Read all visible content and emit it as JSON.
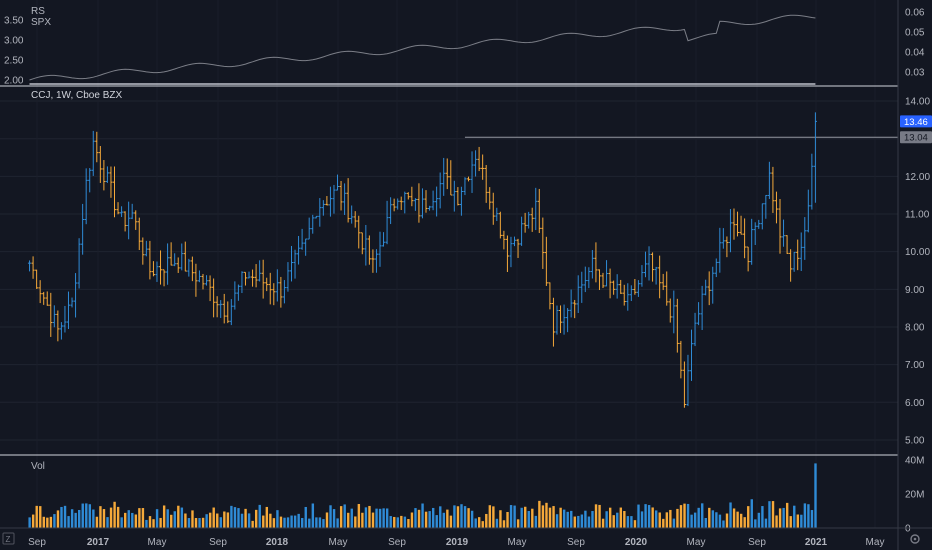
{
  "colors": {
    "background": "#131722",
    "up": "#2f8bd6",
    "down": "#f5a93a",
    "rs_line": "#e0e3eb",
    "spx_line": "#7b7e87",
    "badge_blue": "#2962ff",
    "badge_gray": "#787b86",
    "separator": "#d1d4dc"
  },
  "rs_pane": {
    "labels": [
      "RS",
      "SPX"
    ],
    "left_ticks": [
      "3.50",
      "3.00",
      "2.50",
      "2.00"
    ],
    "right_ticks": [
      "0.06",
      "0.05",
      "0.04",
      "0.03"
    ]
  },
  "price_pane": {
    "title": "CCJ, 1W, Cboe BZX",
    "y_ticks": [
      "14.00",
      "13.00",
      "12.00",
      "11.00",
      "10.00",
      "9.00",
      "8.00",
      "7.00",
      "6.00",
      "5.00"
    ],
    "last_price_label": "13.46",
    "level_label": "13.04"
  },
  "volume_pane": {
    "title": "Vol",
    "y_ticks": [
      "40M",
      "20M",
      "0"
    ]
  },
  "x_axis": {
    "labels": [
      "Sep",
      "2017",
      "May",
      "Sep",
      "2018",
      "May",
      "Sep",
      "2019",
      "May",
      "Sep",
      "2020",
      "May",
      "Sep",
      "2021",
      "May"
    ],
    "bold": [
      "2017",
      "2018",
      "2019",
      "2020",
      "2021"
    ]
  },
  "chart_data": {
    "type": "ohlc",
    "symbol": "CCJ",
    "interval": "1W",
    "exchange": "Cboe BZX",
    "anchors_close": [
      [
        "2016-08-29",
        9.7
      ],
      [
        "2016-10-24",
        7.9
      ],
      [
        "2016-11-21",
        8.6
      ],
      [
        "2016-12-19",
        11.8
      ],
      [
        "2017-01-02",
        12.9
      ],
      [
        "2017-02-27",
        10.8
      ],
      [
        "2017-03-20",
        11.0
      ],
      [
        "2017-04-24",
        9.5
      ],
      [
        "2017-06-19",
        9.8
      ],
      [
        "2017-08-07",
        9.2
      ],
      [
        "2017-09-25",
        8.4
      ],
      [
        "2017-10-30",
        9.4
      ],
      [
        "2018-01-08",
        9.0
      ],
      [
        "2018-02-26",
        10.2
      ],
      [
        "2018-03-19",
        11.2
      ],
      [
        "2018-04-30",
        11.6
      ],
      [
        "2018-05-28",
        11.0
      ],
      [
        "2018-07-09",
        9.6
      ],
      [
        "2018-08-27",
        11.6
      ],
      [
        "2018-10-08",
        11.1
      ],
      [
        "2018-11-26",
        11.9
      ],
      [
        "2018-12-24",
        11.5
      ],
      [
        "2019-01-28",
        12.6
      ],
      [
        "2019-02-25",
        11.5
      ],
      [
        "2019-04-01",
        10.1
      ],
      [
        "2019-05-27",
        11.1
      ],
      [
        "2019-07-01",
        8.1
      ],
      [
        "2019-08-19",
        9.0
      ],
      [
        "2019-09-16",
        9.6
      ],
      [
        "2019-11-25",
        8.6
      ],
      [
        "2020-01-06",
        9.7
      ],
      [
        "2020-02-24",
        8.3
      ],
      [
        "2020-03-16",
        6.0
      ],
      [
        "2020-04-06",
        8.1
      ],
      [
        "2020-05-11",
        9.5
      ],
      [
        "2020-06-22",
        10.9
      ],
      [
        "2020-07-20",
        10.0
      ],
      [
        "2020-08-31",
        12.0
      ],
      [
        "2020-09-21",
        10.5
      ],
      [
        "2020-10-12",
        9.6
      ],
      [
        "2020-11-02",
        10.2
      ],
      [
        "2020-11-16",
        11.0
      ],
      [
        "2020-11-30",
        13.46
      ]
    ],
    "y_range": [
      4.6,
      14.4
    ],
    "horizontal_level": 13.04,
    "last_close": 13.46,
    "volume_range_millions": [
      0,
      40
    ],
    "rs_range": [
      1.9,
      3.9
    ],
    "spx_ratio_range": [
      0.024,
      0.064
    ]
  }
}
